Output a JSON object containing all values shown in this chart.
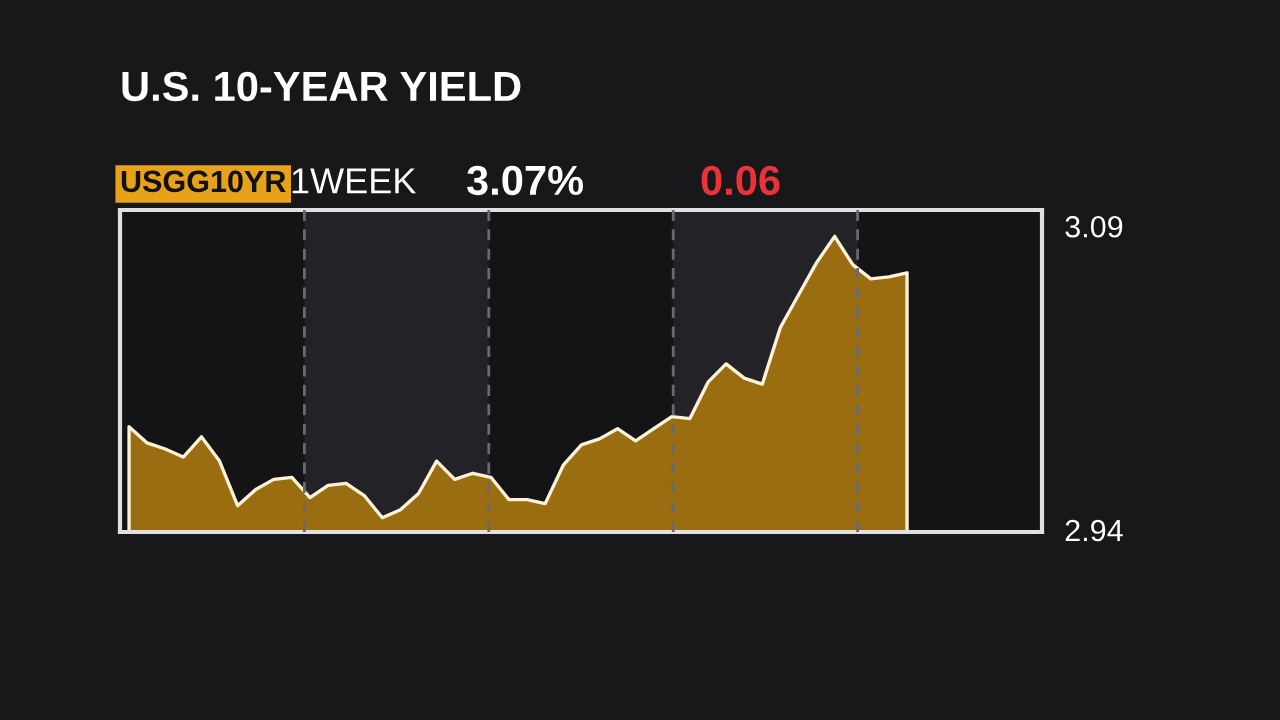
{
  "chart_data": {
    "type": "area",
    "title": "U.S. 10-YEAR YIELD",
    "annotations": [
      "USGG10YR",
      "1WEEK",
      "3.07%",
      "0.06"
    ],
    "categories": [
      null,
      null,
      null,
      null,
      null,
      null,
      null,
      null,
      null,
      null,
      null,
      null,
      null,
      null,
      null,
      null,
      null,
      null,
      null,
      null,
      null,
      null,
      null,
      null,
      null,
      null,
      null,
      null,
      null,
      null,
      null,
      null,
      null,
      null,
      null,
      null,
      null,
      null,
      null,
      null,
      null,
      null,
      null,
      null
    ],
    "series": [
      {
        "color": "#9a6e10",
        "values": [
          2.991,
          2.983,
          2.98,
          2.976,
          2.986,
          2.974,
          2.952,
          2.96,
          2.965,
          2.966,
          2.956,
          2.962,
          2.963,
          2.957,
          2.946,
          2.95,
          2.958,
          2.974,
          2.965,
          2.968,
          2.966,
          2.955,
          2.955,
          2.953,
          2.972,
          2.982,
          2.985,
          2.99,
          2.984,
          2.99,
          2.996,
          2.995,
          3.013,
          3.022,
          3.015,
          3.012,
          3.04,
          3.056,
          3.072,
          3.085,
          3.071,
          3.064,
          3.065,
          3.067
        ]
      }
    ],
    "ylim": [
      2.939,
      3.098
    ],
    "yticks": [
      2.94,
      3.09
    ],
    "tick_labels": "y",
    "grid": "x"
  }
}
